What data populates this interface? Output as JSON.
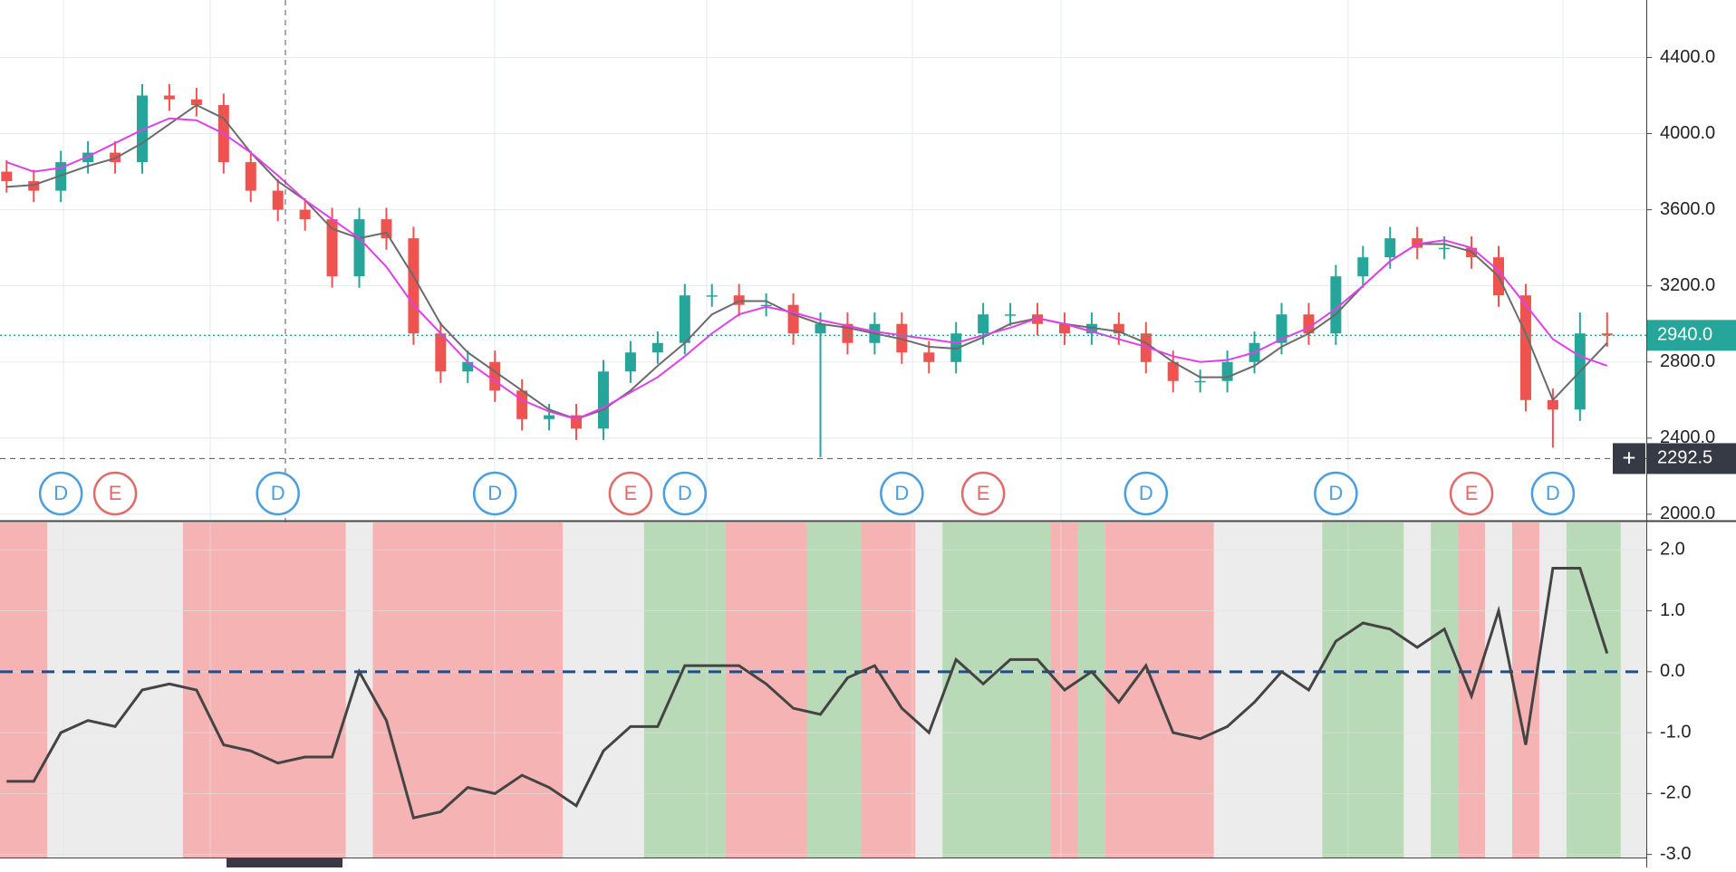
{
  "chart_data": [
    {
      "type": "candlestick",
      "ohlc": [
        [
          3800,
          3860,
          3690,
          3750
        ],
        [
          3750,
          3810,
          3640,
          3700
        ],
        [
          3700,
          3910,
          3640,
          3850
        ],
        [
          3850,
          3960,
          3790,
          3900
        ],
        [
          3900,
          3960,
          3790,
          3850
        ],
        [
          3850,
          4260,
          3790,
          4200
        ],
        [
          4200,
          4260,
          4120,
          4180
        ],
        [
          4180,
          4240,
          4090,
          4150
        ],
        [
          4150,
          4210,
          3790,
          3850
        ],
        [
          3850,
          3910,
          3640,
          3700
        ],
        [
          3700,
          3760,
          3540,
          3600
        ],
        [
          3600,
          3660,
          3490,
          3550
        ],
        [
          3550,
          3610,
          3190,
          3250
        ],
        [
          3250,
          3610,
          3190,
          3550
        ],
        [
          3550,
          3610,
          3390,
          3450
        ],
        [
          3450,
          3510,
          2890,
          2950
        ],
        [
          2950,
          3010,
          2690,
          2750
        ],
        [
          2750,
          2860,
          2690,
          2800
        ],
        [
          2800,
          2860,
          2590,
          2650
        ],
        [
          2650,
          2710,
          2440,
          2500
        ],
        [
          2500,
          2580,
          2440,
          2520
        ],
        [
          2520,
          2580,
          2390,
          2450
        ],
        [
          2450,
          2810,
          2390,
          2750
        ],
        [
          2750,
          2910,
          2690,
          2850
        ],
        [
          2850,
          2960,
          2790,
          2900
        ],
        [
          2900,
          3210,
          2840,
          3150
        ],
        [
          3150,
          3210,
          3090,
          3150
        ],
        [
          3150,
          3210,
          3040,
          3100
        ],
        [
          3100,
          3160,
          3040,
          3100
        ],
        [
          3100,
          3160,
          2890,
          2950
        ],
        [
          2950,
          3060,
          2300,
          3000
        ],
        [
          3000,
          3060,
          2840,
          2900
        ],
        [
          2900,
          3060,
          2840,
          3000
        ],
        [
          3000,
          3060,
          2790,
          2850
        ],
        [
          2850,
          2910,
          2740,
          2800
        ],
        [
          2800,
          3010,
          2740,
          2950
        ],
        [
          2950,
          3110,
          2890,
          3050
        ],
        [
          3050,
          3110,
          2990,
          3050
        ],
        [
          3050,
          3110,
          2940,
          3000
        ],
        [
          3000,
          3060,
          2890,
          2950
        ],
        [
          2950,
          3060,
          2890,
          3000
        ],
        [
          3000,
          3060,
          2890,
          2950
        ],
        [
          2950,
          3010,
          2740,
          2800
        ],
        [
          2800,
          2860,
          2640,
          2700
        ],
        [
          2700,
          2760,
          2640,
          2700
        ],
        [
          2700,
          2860,
          2640,
          2800
        ],
        [
          2800,
          2960,
          2740,
          2900
        ],
        [
          2900,
          3110,
          2840,
          3050
        ],
        [
          3050,
          3110,
          2890,
          2950
        ],
        [
          2950,
          3310,
          2890,
          3250
        ],
        [
          3250,
          3410,
          3190,
          3350
        ],
        [
          3350,
          3510,
          3290,
          3450
        ],
        [
          3450,
          3510,
          3340,
          3400
        ],
        [
          3400,
          3460,
          3340,
          3400
        ],
        [
          3400,
          3460,
          3290,
          3350
        ],
        [
          3350,
          3410,
          3090,
          3150
        ],
        [
          3150,
          3210,
          2540,
          2600
        ],
        [
          2600,
          2660,
          2350,
          2550
        ],
        [
          2550,
          3060,
          2490,
          2950
        ],
        [
          2950,
          3060,
          2880,
          2940
        ]
      ],
      "up_color": "#26a69a",
      "down_color": "#ef5350",
      "series": [
        {
          "color": "#6b6b6b",
          "values": [
            3720,
            3730,
            3780,
            3830,
            3870,
            3950,
            4050,
            4150,
            4080,
            3900,
            3750,
            3650,
            3500,
            3450,
            3480,
            3250,
            3000,
            2850,
            2750,
            2650,
            2550,
            2500,
            2550,
            2650,
            2780,
            2900,
            3050,
            3120,
            3120,
            3050,
            3000,
            2980,
            2950,
            2920,
            2880,
            2870,
            2930,
            3000,
            3030,
            3000,
            2980,
            2960,
            2900,
            2800,
            2720,
            2720,
            2780,
            2880,
            2950,
            3050,
            3200,
            3330,
            3420,
            3420,
            3380,
            3250,
            2950,
            2600,
            2750,
            2900
          ]
        },
        {
          "color": "#e040e8",
          "values": [
            3850,
            3800,
            3820,
            3880,
            3950,
            4020,
            4080,
            4070,
            4000,
            3900,
            3780,
            3650,
            3550,
            3450,
            3300,
            3100,
            2950,
            2800,
            2700,
            2600,
            2540,
            2500,
            2560,
            2640,
            2720,
            2830,
            2950,
            3050,
            3090,
            3060,
            3020,
            2990,
            2960,
            2940,
            2920,
            2900,
            2940,
            2980,
            3030,
            3000,
            2960,
            2920,
            2880,
            2830,
            2800,
            2810,
            2850,
            2920,
            2980,
            3080,
            3200,
            3330,
            3420,
            3440,
            3400,
            3280,
            3100,
            2920,
            2830,
            2780
          ]
        }
      ],
      "events": [
        {
          "index": 2,
          "label": "D",
          "color": "#4a9fe0"
        },
        {
          "index": 4,
          "label": "E",
          "color": "#e06b6b"
        },
        {
          "index": 10,
          "label": "D",
          "color": "#4a9fe0"
        },
        {
          "index": 18,
          "label": "D",
          "color": "#4a9fe0"
        },
        {
          "index": 23,
          "label": "E",
          "color": "#e06b6b"
        },
        {
          "index": 25,
          "label": "D",
          "color": "#4a9fe0"
        },
        {
          "index": 33,
          "label": "D",
          "color": "#4a9fe0"
        },
        {
          "index": 36,
          "label": "E",
          "color": "#e06b6b"
        },
        {
          "index": 42,
          "label": "D",
          "color": "#4a9fe0"
        },
        {
          "index": 49,
          "label": "D",
          "color": "#4a9fe0"
        },
        {
          "index": 54,
          "label": "E",
          "color": "#e06b6b"
        },
        {
          "index": 57,
          "label": "D",
          "color": "#4a9fe0"
        }
      ],
      "ylim": [
        1971,
        4702
      ],
      "yticks": [
        {
          "value": 2000,
          "label": "2000.0"
        },
        {
          "value": 2400,
          "label": "2400.0"
        },
        {
          "value": 2800,
          "label": "2800.0"
        },
        {
          "value": 3200,
          "label": "3200.0"
        },
        {
          "value": 3600,
          "label": "3600.0"
        },
        {
          "value": 4000,
          "label": "4000.0"
        },
        {
          "value": 4400,
          "label": "4400.0"
        }
      ],
      "last_price": {
        "value": 2940,
        "label": "2940.0",
        "color": "#26a69a"
      },
      "crosshair": {
        "value": 2292.5,
        "label": "2292.5",
        "color": "#363a45"
      },
      "grid": true
    },
    {
      "type": "line",
      "values": [
        -1.8,
        -1.8,
        -1.0,
        -0.8,
        -0.9,
        -0.3,
        -0.2,
        -0.3,
        -1.2,
        -1.3,
        -1.5,
        -1.4,
        -1.4,
        0,
        -0.8,
        -2.4,
        -2.3,
        -1.9,
        -2.0,
        -1.7,
        -1.9,
        -2.2,
        -1.3,
        -0.9,
        -0.9,
        0.1,
        0.1,
        0.1,
        -0.2,
        -0.6,
        -0.7,
        -0.1,
        0.1,
        -0.6,
        -1.0,
        0.2,
        -0.2,
        0.2,
        0.2,
        -0.3,
        0.0,
        -0.5,
        0.1,
        -1.0,
        -1.1,
        -0.9,
        -0.5,
        0.0,
        -0.3,
        0.5,
        0.8,
        0.7,
        0.4,
        0.7,
        -0.4,
        1.0,
        -1.2,
        1.7,
        1.7,
        0.3
      ],
      "color": "#444444",
      "zones": [
        {
          "from": 0,
          "to": 1,
          "color": "#f5b3b3"
        },
        {
          "from": 7,
          "to": 12,
          "color": "#f5b3b3"
        },
        {
          "from": 14,
          "to": 20,
          "color": "#f5b3b3"
        },
        {
          "from": 24,
          "to": 26,
          "color": "#b9dab6"
        },
        {
          "from": 27,
          "to": 29,
          "color": "#f5b3b3"
        },
        {
          "from": 30,
          "to": 31,
          "color": "#b9dab6"
        },
        {
          "from": 32,
          "to": 33,
          "color": "#f5b3b3"
        },
        {
          "from": 35,
          "to": 38,
          "color": "#b9dab6"
        },
        {
          "from": 39,
          "to": 39,
          "color": "#f5b3b3"
        },
        {
          "from": 40,
          "to": 40,
          "color": "#b9dab6"
        },
        {
          "from": 41,
          "to": 44,
          "color": "#f5b3b3"
        },
        {
          "from": 49,
          "to": 51,
          "color": "#b9dab6"
        },
        {
          "from": 53,
          "to": 53,
          "color": "#b9dab6"
        },
        {
          "from": 54,
          "to": 54,
          "color": "#f5b3b3"
        },
        {
          "from": 56,
          "to": 56,
          "color": "#f5b3b3"
        },
        {
          "from": 58,
          "to": 59,
          "color": "#b9dab6"
        }
      ],
      "hline": {
        "value": 0,
        "color": "#1f4e8c"
      },
      "ylim": [
        -3.05,
        2.45
      ],
      "yticks": [
        {
          "value": 2,
          "label": "2.0"
        },
        {
          "value": 1,
          "label": "1.0"
        },
        {
          "value": 0,
          "label": "0.0"
        },
        {
          "value": -1,
          "label": "-1.0"
        },
        {
          "value": -2,
          "label": "-2.0"
        },
        {
          "value": -3,
          "label": "-3.0"
        }
      ],
      "grid": true
    }
  ]
}
